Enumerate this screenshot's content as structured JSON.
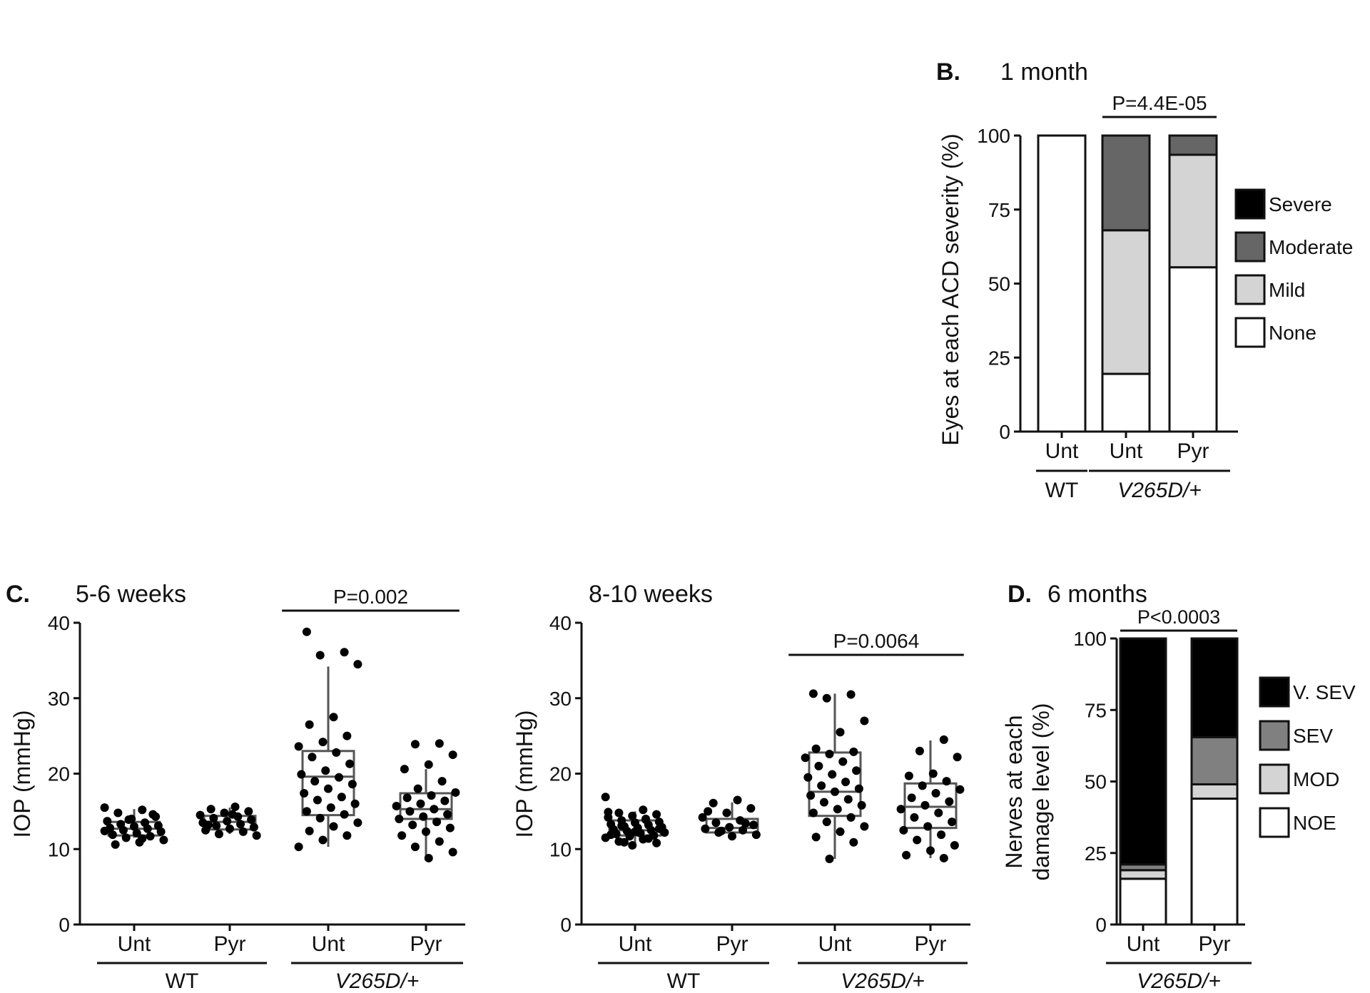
{
  "chart_data": [
    {
      "panel": "B.",
      "title": "1 month",
      "type": "bar",
      "stacked": true,
      "ylabel": "Eyes at each ACD severity (%)",
      "ylim": [
        0,
        100
      ],
      "yticks": [
        0,
        25,
        50,
        75,
        100
      ],
      "categories": [
        "Unt",
        "Unt",
        "Pyr"
      ],
      "groups": [
        {
          "label": "WT",
          "italic": false,
          "members": [
            0
          ]
        },
        {
          "label": "V265D/+",
          "italic": true,
          "members": [
            1,
            2
          ]
        }
      ],
      "series": [
        {
          "name": "None",
          "color": "#ffffff",
          "values": [
            100,
            19.5,
            55.5
          ]
        },
        {
          "name": "Mild",
          "color": "#d4d4d4",
          "values": [
            0,
            48.5,
            38
          ]
        },
        {
          "name": "Moderate",
          "color": "#666666",
          "values": [
            0,
            32,
            6.5
          ]
        },
        {
          "name": "Severe",
          "color": "#000000",
          "values": [
            0,
            0,
            0
          ]
        }
      ],
      "legend_order": [
        "Severe",
        "Moderate",
        "Mild",
        "None"
      ],
      "legend_position": "right",
      "annotation": {
        "text": "P=4.4E-05",
        "between": [
          1,
          2
        ]
      }
    },
    {
      "panel": "C.",
      "title": "5-6 weeks",
      "type": "scatter",
      "style": "box-with-points",
      "ylabel": "IOP (mmHg)",
      "ylim": [
        0,
        40
      ],
      "yticks": [
        0,
        10,
        20,
        30,
        40
      ],
      "categories": [
        "Unt",
        "Pyr",
        "Unt",
        "Pyr"
      ],
      "groups": [
        {
          "label": "WT",
          "italic": false,
          "members": [
            0,
            1
          ]
        },
        {
          "label": "V265D/+",
          "italic": true,
          "members": [
            2,
            3
          ]
        }
      ],
      "boxes": [
        {
          "min": 11.5,
          "q1": 11.8,
          "median": 12.7,
          "q3": 13.6,
          "max": 15.3
        },
        {
          "min": 12.0,
          "q1": 12.6,
          "median": 13.6,
          "q3": 14.4,
          "max": 15.5
        },
        {
          "min": 10.3,
          "q1": 14.5,
          "median": 19.6,
          "q3": 23.0,
          "max": 34.2
        },
        {
          "min": 8.8,
          "q1": 14.0,
          "median": 15.3,
          "q3": 17.4,
          "max": 20.6
        }
      ],
      "points": [
        [
          15.5,
          15.2,
          14.8,
          14.3,
          14.0,
          13.7,
          13.5,
          13.3,
          13.1,
          13.0,
          12.8,
          12.7,
          12.5,
          12.3,
          12.1,
          11.9,
          11.7,
          11.5,
          11.2,
          10.9,
          10.6,
          14.6,
          13.9,
          12.4,
          11.4
        ],
        [
          15.6,
          15.3,
          15.0,
          14.8,
          14.5,
          14.3,
          14.1,
          13.9,
          13.7,
          13.5,
          13.3,
          13.1,
          12.9,
          12.7,
          12.5,
          12.3,
          12.0,
          11.8,
          14.6,
          13.2
        ],
        [
          38.8,
          36.1,
          35.7,
          34.5,
          27.5,
          26.5,
          25.0,
          24.2,
          23.6,
          22.8,
          22.2,
          21.3,
          20.4,
          19.9,
          19.5,
          19.0,
          18.6,
          18.0,
          17.4,
          16.9,
          16.5,
          16.0,
          15.5,
          15.0,
          14.6,
          14.1,
          13.5,
          13.0,
          12.4,
          11.8,
          11.2,
          10.3
        ],
        [
          24.0,
          23.9,
          22.5,
          21.2,
          20.6,
          19.0,
          18.0,
          17.5,
          17.1,
          16.8,
          16.4,
          16.0,
          15.7,
          15.3,
          15.0,
          14.6,
          14.3,
          14.0,
          13.6,
          13.2,
          12.8,
          12.3,
          11.8,
          11.0,
          10.3,
          9.6,
          8.8
        ]
      ],
      "annotation": {
        "text": "P=0.002",
        "between": [
          2,
          3
        ]
      }
    },
    {
      "panel": "",
      "title": "8-10 weeks",
      "type": "scatter",
      "style": "box-with-points",
      "ylabel": "IOP (mmHg)",
      "ylim": [
        0,
        40
      ],
      "yticks": [
        0,
        10,
        20,
        30,
        40
      ],
      "categories": [
        "Unt",
        "Pyr",
        "Unt",
        "Pyr"
      ],
      "groups": [
        {
          "label": "WT",
          "italic": false,
          "members": [
            0,
            1
          ]
        },
        {
          "label": "V265D/+",
          "italic": true,
          "members": [
            2,
            3
          ]
        }
      ],
      "boxes": [
        {
          "min": 10.8,
          "q1": 11.8,
          "median": 12.5,
          "q3": 13.8,
          "max": 15.0
        },
        {
          "min": 11.8,
          "q1": 12.2,
          "median": 12.8,
          "q3": 14.0,
          "max": 16.2
        },
        {
          "min": 8.7,
          "q1": 14.4,
          "median": 17.6,
          "q3": 22.8,
          "max": 30.6
        },
        {
          "min": 8.8,
          "q1": 12.8,
          "median": 15.6,
          "q3": 18.7,
          "max": 24.4
        }
      ],
      "points": [
        [
          16.9,
          15.2,
          14.8,
          14.6,
          14.4,
          14.2,
          14.0,
          13.8,
          13.6,
          13.5,
          13.3,
          13.2,
          13.0,
          12.9,
          12.8,
          12.6,
          12.5,
          12.4,
          12.2,
          12.1,
          12.0,
          11.8,
          11.7,
          11.5,
          11.3,
          11.0,
          10.8,
          10.5,
          14.9,
          13.9,
          13.1,
          12.7,
          12.3,
          11.9,
          11.4,
          10.9
        ],
        [
          16.5,
          16.1,
          15.4,
          14.8,
          14.2,
          13.8,
          13.5,
          13.2,
          12.9,
          12.7,
          12.5,
          12.2,
          11.9,
          11.7,
          15.0,
          13.4,
          12.4
        ],
        [
          30.6,
          30.5,
          30.0,
          27.0,
          25.5,
          23.3,
          22.9,
          22.6,
          22.1,
          21.6,
          21.0,
          20.4,
          19.9,
          19.5,
          18.9,
          18.4,
          18.0,
          17.6,
          17.1,
          16.6,
          16.2,
          15.8,
          15.3,
          14.8,
          14.2,
          13.6,
          13.0,
          12.3,
          11.6,
          10.9,
          8.7
        ],
        [
          24.5,
          23.0,
          22.2,
          20.0,
          19.7,
          19.0,
          18.4,
          17.9,
          17.4,
          16.8,
          16.3,
          15.8,
          15.3,
          14.8,
          14.2,
          13.6,
          13.0,
          12.5,
          11.9,
          11.2,
          10.5,
          9.8,
          9.2,
          8.8
        ]
      ],
      "annotation": {
        "text": "P=0.0064",
        "between": [
          2,
          3
        ]
      }
    },
    {
      "panel": "D.",
      "title": "6 months",
      "type": "bar",
      "stacked": true,
      "ylabel": [
        "Nerves at each",
        "damage level (%)"
      ],
      "ylim": [
        0,
        100
      ],
      "yticks": [
        0,
        25,
        50,
        75,
        100
      ],
      "categories": [
        "Unt",
        "Pyr"
      ],
      "groups": [
        {
          "label": "V265D/+",
          "italic": true,
          "members": [
            0,
            1
          ]
        }
      ],
      "series": [
        {
          "name": "NOE",
          "color": "#ffffff",
          "values": [
            16,
            44
          ]
        },
        {
          "name": "MOD",
          "color": "#d4d4d4",
          "values": [
            3,
            5
          ]
        },
        {
          "name": "SEV",
          "color": "#808080",
          "values": [
            2,
            16.5
          ]
        },
        {
          "name": "V. SEV",
          "color": "#000000",
          "values": [
            79,
            34.5
          ]
        }
      ],
      "legend_order": [
        "V. SEV",
        "SEV",
        "MOD",
        "NOE"
      ],
      "legend_position": "right",
      "annotation": {
        "text": "P<0.0003",
        "between": [
          0,
          1
        ]
      }
    }
  ]
}
